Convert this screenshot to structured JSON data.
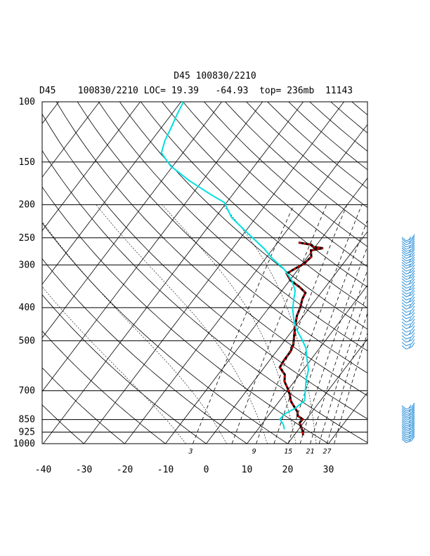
{
  "header": {
    "title": "D45 100830/2210",
    "subtitle": "D45    100830/2210 LOC= 19.39   -64.93  top= 236mb  11143"
  },
  "colors": {
    "temperature": "#d40000",
    "temperature_segment": "#000000",
    "dewpoint": "#00e0e0",
    "wind_barbs": "#2a8fd8",
    "grid": "#000000"
  },
  "chart_data": {
    "type": "line",
    "diagram": "skew-T log-P",
    "pressure_ticks": [
      "100",
      "150",
      "200",
      "250",
      "300",
      "400",
      "500",
      "700",
      "850",
      "925",
      "1000"
    ],
    "pressure_levels": [
      100,
      150,
      200,
      250,
      300,
      400,
      500,
      700,
      850,
      925,
      1000
    ],
    "temperature_ticks": [
      "-40",
      "-30",
      "-20",
      "-10",
      "0",
      "10",
      "20",
      "30"
    ],
    "temperature_range": [
      -40,
      40
    ],
    "pressure_range": [
      100,
      1000
    ],
    "mixing_ratio_labels": [
      "3",
      "9",
      "15",
      "21",
      "27"
    ],
    "series": [
      {
        "key": "temperature",
        "points": [
          {
            "p": 258,
            "t": -14.9
          },
          {
            "p": 262,
            "t": -11.3
          },
          {
            "p": 266,
            "t": -10.3
          },
          {
            "p": 268,
            "t": -7.8
          },
          {
            "p": 272,
            "t": -10.4
          },
          {
            "p": 284,
            "t": -9.1
          },
          {
            "p": 298,
            "t": -9.6
          },
          {
            "p": 305,
            "t": -10.6
          },
          {
            "p": 318,
            "t": -12.0
          },
          {
            "p": 333,
            "t": -9.8
          },
          {
            "p": 348,
            "t": -6.4
          },
          {
            "p": 362,
            "t": -3.8
          },
          {
            "p": 378,
            "t": -3.4
          },
          {
            "p": 398,
            "t": -2.4
          },
          {
            "p": 423,
            "t": -1.6
          },
          {
            "p": 453,
            "t": -0.1
          },
          {
            "p": 483,
            "t": 1.4
          },
          {
            "p": 513,
            "t": 2.9
          },
          {
            "p": 538,
            "t": 3.5
          },
          {
            "p": 568,
            "t": 3.5
          },
          {
            "p": 598,
            "t": 3.8
          },
          {
            "p": 628,
            "t": 6.4
          },
          {
            "p": 658,
            "t": 7.6
          },
          {
            "p": 688,
            "t": 9.6
          },
          {
            "p": 718,
            "t": 11.3
          },
          {
            "p": 752,
            "t": 12.9
          },
          {
            "p": 778,
            "t": 14.6
          },
          {
            "p": 808,
            "t": 16.5
          },
          {
            "p": 828,
            "t": 17.2
          },
          {
            "p": 848,
            "t": 19.1
          },
          {
            "p": 868,
            "t": 19.0
          },
          {
            "p": 893,
            "t": 20.1
          },
          {
            "p": 918,
            "t": 21.3
          },
          {
            "p": 945,
            "t": 22.2
          }
        ]
      },
      {
        "key": "dewpoint",
        "points": [
          {
            "p": 100,
            "t": -69.4
          },
          {
            "p": 109,
            "t": -68.6
          },
          {
            "p": 119,
            "t": -67.6
          },
          {
            "p": 130,
            "t": -66.7
          },
          {
            "p": 141,
            "t": -65.3
          },
          {
            "p": 154,
            "t": -60.6
          },
          {
            "p": 170,
            "t": -53.3
          },
          {
            "p": 186,
            "t": -45.7
          },
          {
            "p": 197,
            "t": -40.6
          },
          {
            "p": 218,
            "t": -36.0
          },
          {
            "p": 242,
            "t": -29.2
          },
          {
            "p": 268,
            "t": -22.4
          },
          {
            "p": 287,
            "t": -18.4
          },
          {
            "p": 308,
            "t": -13.6
          },
          {
            "p": 332,
            "t": -9.6
          },
          {
            "p": 357,
            "t": -6.7
          },
          {
            "p": 381,
            "t": -5.3
          },
          {
            "p": 404,
            "t": -3.9
          },
          {
            "p": 432,
            "t": -1.8
          },
          {
            "p": 462,
            "t": 0.7
          },
          {
            "p": 493,
            "t": 3.8
          },
          {
            "p": 525,
            "t": 6.6
          },
          {
            "p": 563,
            "t": 8.8
          },
          {
            "p": 608,
            "t": 11.3
          },
          {
            "p": 653,
            "t": 12.7
          },
          {
            "p": 702,
            "t": 14.5
          },
          {
            "p": 748,
            "t": 16.1
          },
          {
            "p": 788,
            "t": 15.2
          },
          {
            "p": 818,
            "t": 13.7
          },
          {
            "p": 848,
            "t": 13.5
          },
          {
            "p": 878,
            "t": 15.3
          },
          {
            "p": 908,
            "t": 16.5
          }
        ]
      }
    ],
    "wind_barb_levels": [
      [
        255,
        258,
        262,
        266,
        270,
        274,
        278,
        282,
        287,
        292,
        297,
        302,
        307,
        313,
        319,
        325,
        331,
        337,
        344,
        351,
        358,
        365,
        372,
        380,
        388,
        396,
        404,
        413,
        422,
        431,
        441,
        451,
        461,
        472,
        483,
        494,
        505,
        517,
        529
      ],
      [
        793,
        803,
        813,
        823,
        833,
        843,
        854,
        865,
        876,
        887,
        898,
        909,
        920,
        932,
        944,
        956,
        968,
        980,
        993
      ]
    ]
  }
}
